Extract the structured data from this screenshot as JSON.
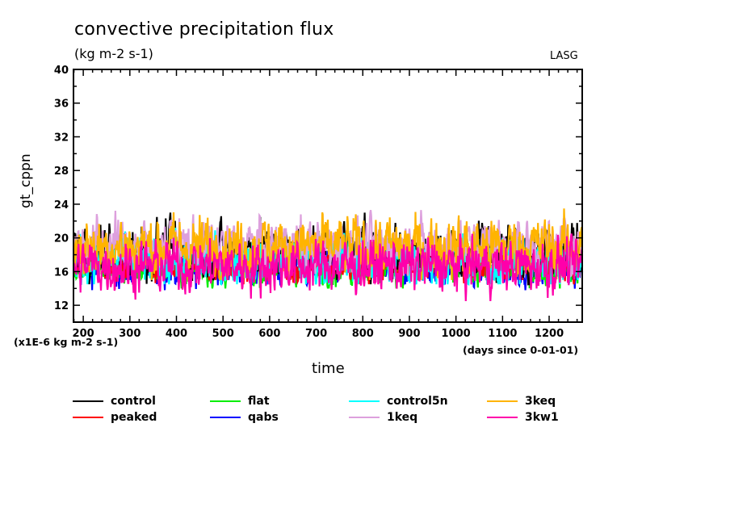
{
  "chart_data": {
    "type": "line",
    "title": "convective precipitation flux",
    "units": "(kg m-2 s-1)",
    "credit": "LASG",
    "ylabel": "gt_cppn",
    "scale_note": "(x1E-6 kg m-2 s-1)",
    "xlabel": "time",
    "xunits": "(days since 0-01-01)",
    "xlim": [
      179,
      1271
    ],
    "ylim": [
      10,
      40
    ],
    "xticks": [
      200,
      300,
      400,
      500,
      600,
      700,
      800,
      900,
      1000,
      1100,
      1200
    ],
    "xtick_labels": [
      "200",
      "300",
      "400",
      "500",
      "600",
      "700",
      "800",
      "900",
      "1000",
      "1100",
      "1200"
    ],
    "yticks": [
      12,
      16,
      20,
      24,
      28,
      32,
      36,
      40
    ],
    "ytick_labels": [
      "12",
      "16",
      "20",
      "24",
      "28",
      "32",
      "36",
      "40"
    ],
    "grid": false,
    "legend_position": "below",
    "note": "Daily series, values approximate: summarized by mean level and range, not individual points.",
    "series": [
      {
        "name": "control",
        "color": "#000000",
        "mean": 18.6,
        "min": 14.5,
        "max": 23.0
      },
      {
        "name": "peaked",
        "color": "#ff0000",
        "mean": 16.8,
        "min": 14.5,
        "max": 19.5
      },
      {
        "name": "flat",
        "color": "#00ee00",
        "mean": 16.6,
        "min": 14.0,
        "max": 19.5
      },
      {
        "name": "qabs",
        "color": "#0000ff",
        "mean": 16.6,
        "min": 13.8,
        "max": 19.5
      },
      {
        "name": "control5n",
        "color": "#00ffff",
        "mean": 17.4,
        "min": 14.5,
        "max": 22.5
      },
      {
        "name": "1keq",
        "color": "#dda0dd",
        "mean": 19.2,
        "min": 15.5,
        "max": 23.3
      },
      {
        "name": "3keq",
        "color": "#ffb400",
        "mean": 19.0,
        "min": 15.0,
        "max": 24.0
      },
      {
        "name": "3kw1",
        "color": "#ff00aa",
        "mean": 16.7,
        "min": 12.5,
        "max": 20.5
      }
    ]
  },
  "legend": {
    "items": [
      {
        "label": "control",
        "color": "#000000"
      },
      {
        "label": "peaked",
        "color": "#ff0000"
      },
      {
        "label": "flat",
        "color": "#00ee00"
      },
      {
        "label": "qabs",
        "color": "#0000ff"
      },
      {
        "label": "control5n",
        "color": "#00ffff"
      },
      {
        "label": "1keq",
        "color": "#dda0dd"
      },
      {
        "label": "3keq",
        "color": "#ffb400"
      },
      {
        "label": "3kw1",
        "color": "#ff00aa"
      }
    ]
  }
}
